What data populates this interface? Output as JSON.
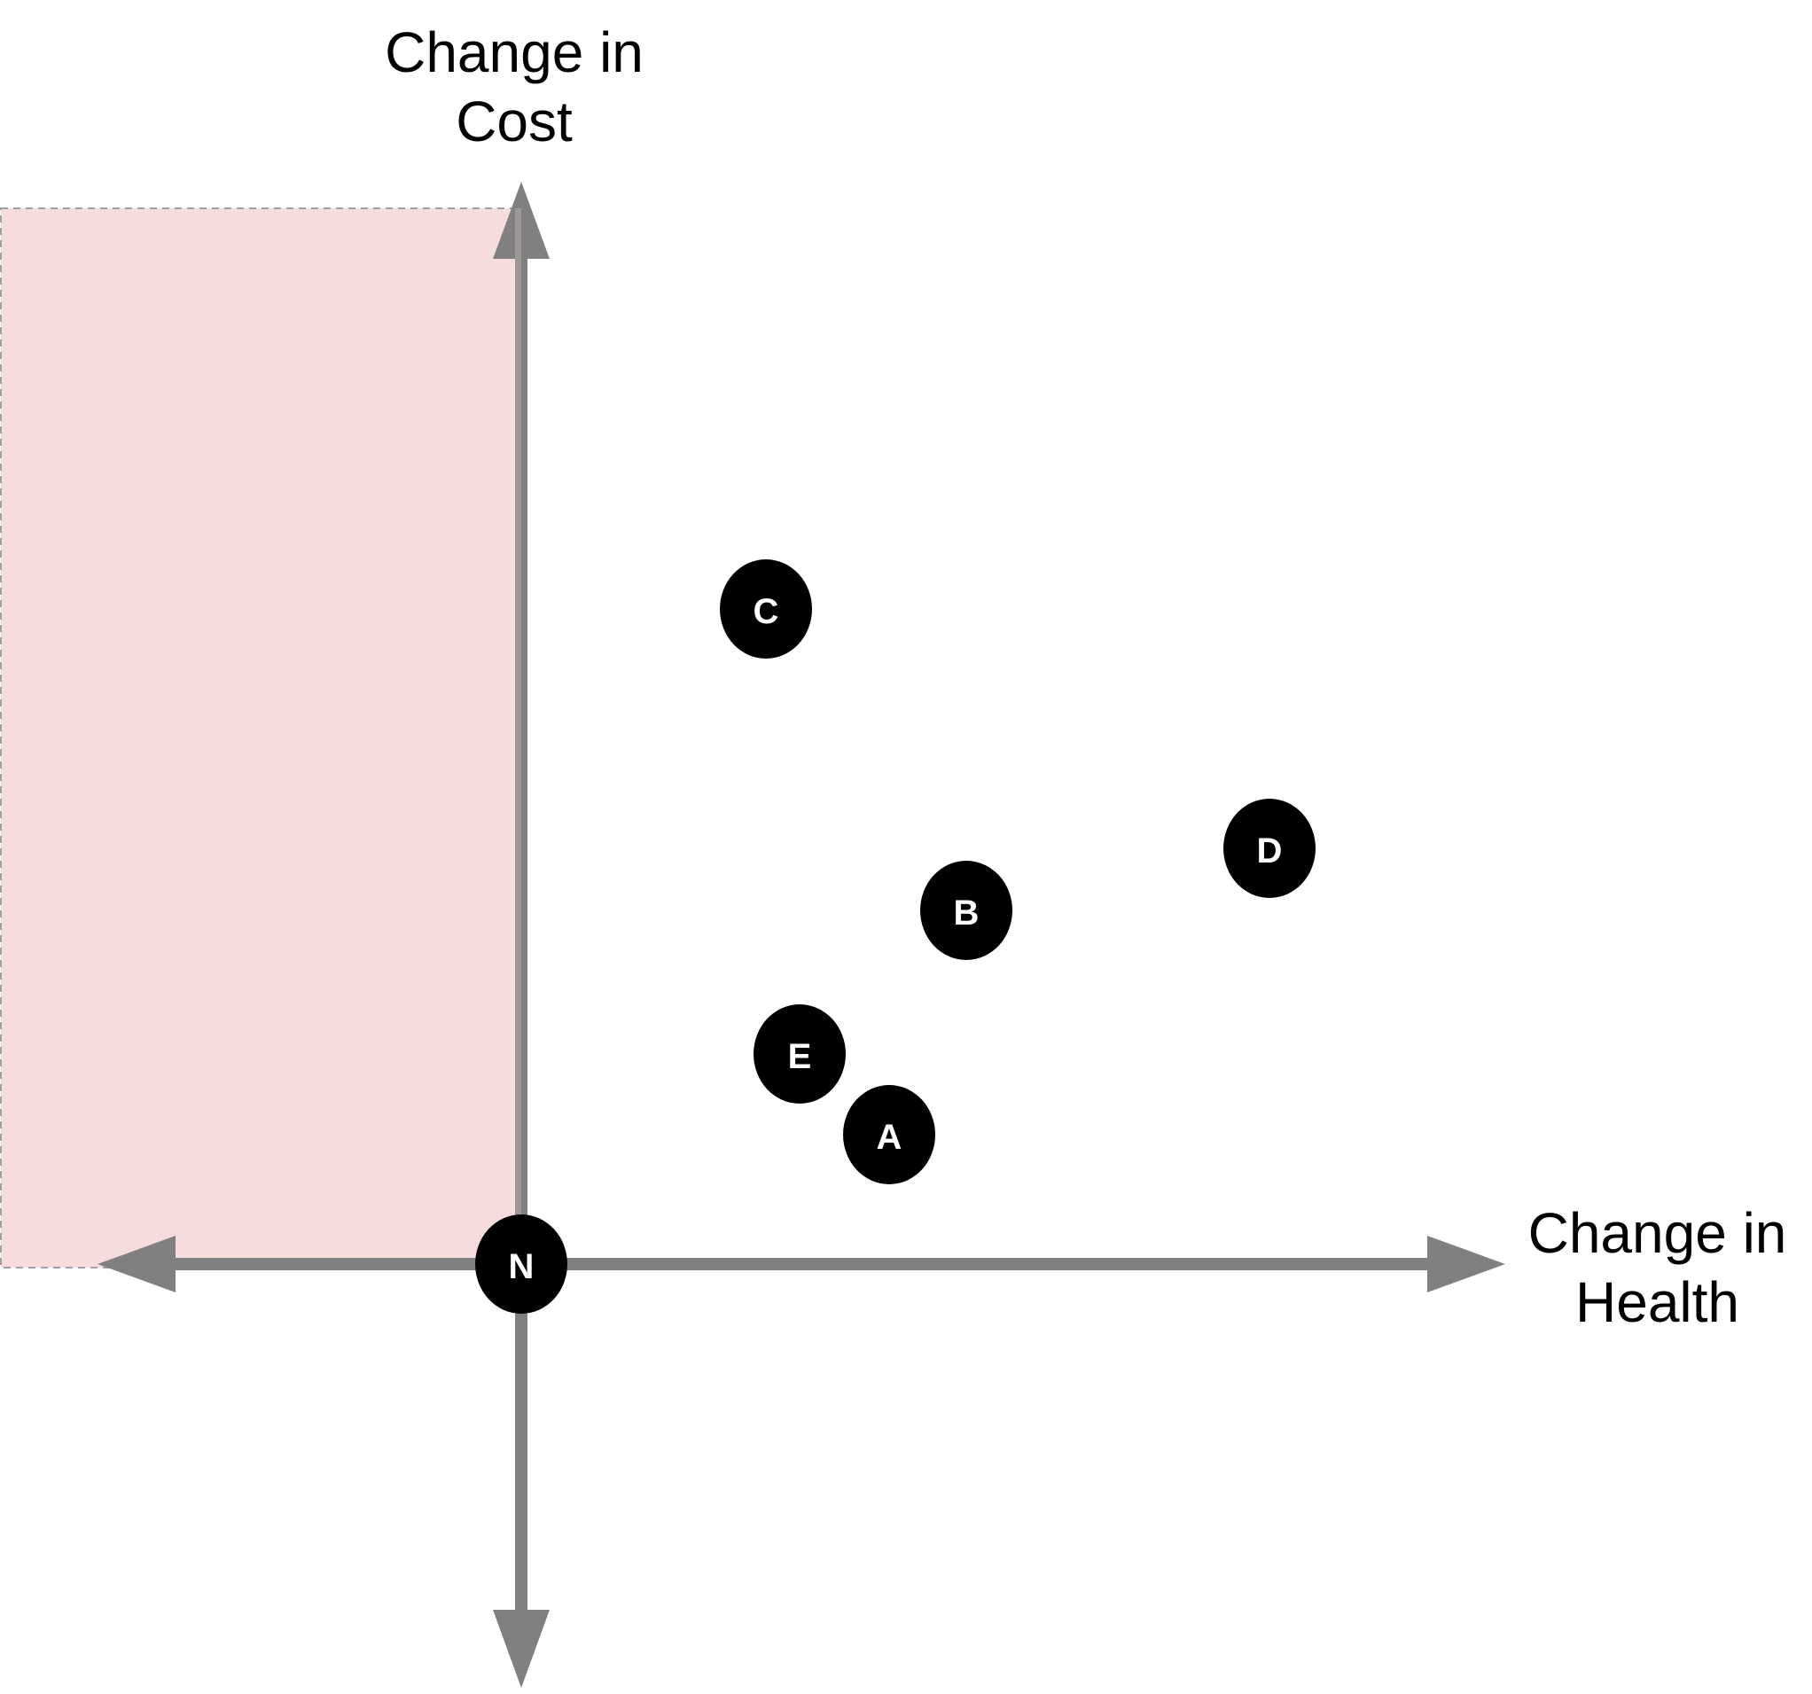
{
  "axes": {
    "y_title_line1": "Change in",
    "y_title_line2": "Cost",
    "x_title_line1": "Change in",
    "x_title_line2": "Health"
  },
  "colors": {
    "axis": "#808080",
    "region_fill": "#f7dcde",
    "region_border": "#a0a0a0",
    "node_fill": "#000000",
    "node_text": "#ffffff"
  },
  "nodes": [
    {
      "label": "N"
    },
    {
      "label": "C"
    },
    {
      "label": "D"
    },
    {
      "label": "B"
    },
    {
      "label": "E"
    },
    {
      "label": "A"
    }
  ]
}
